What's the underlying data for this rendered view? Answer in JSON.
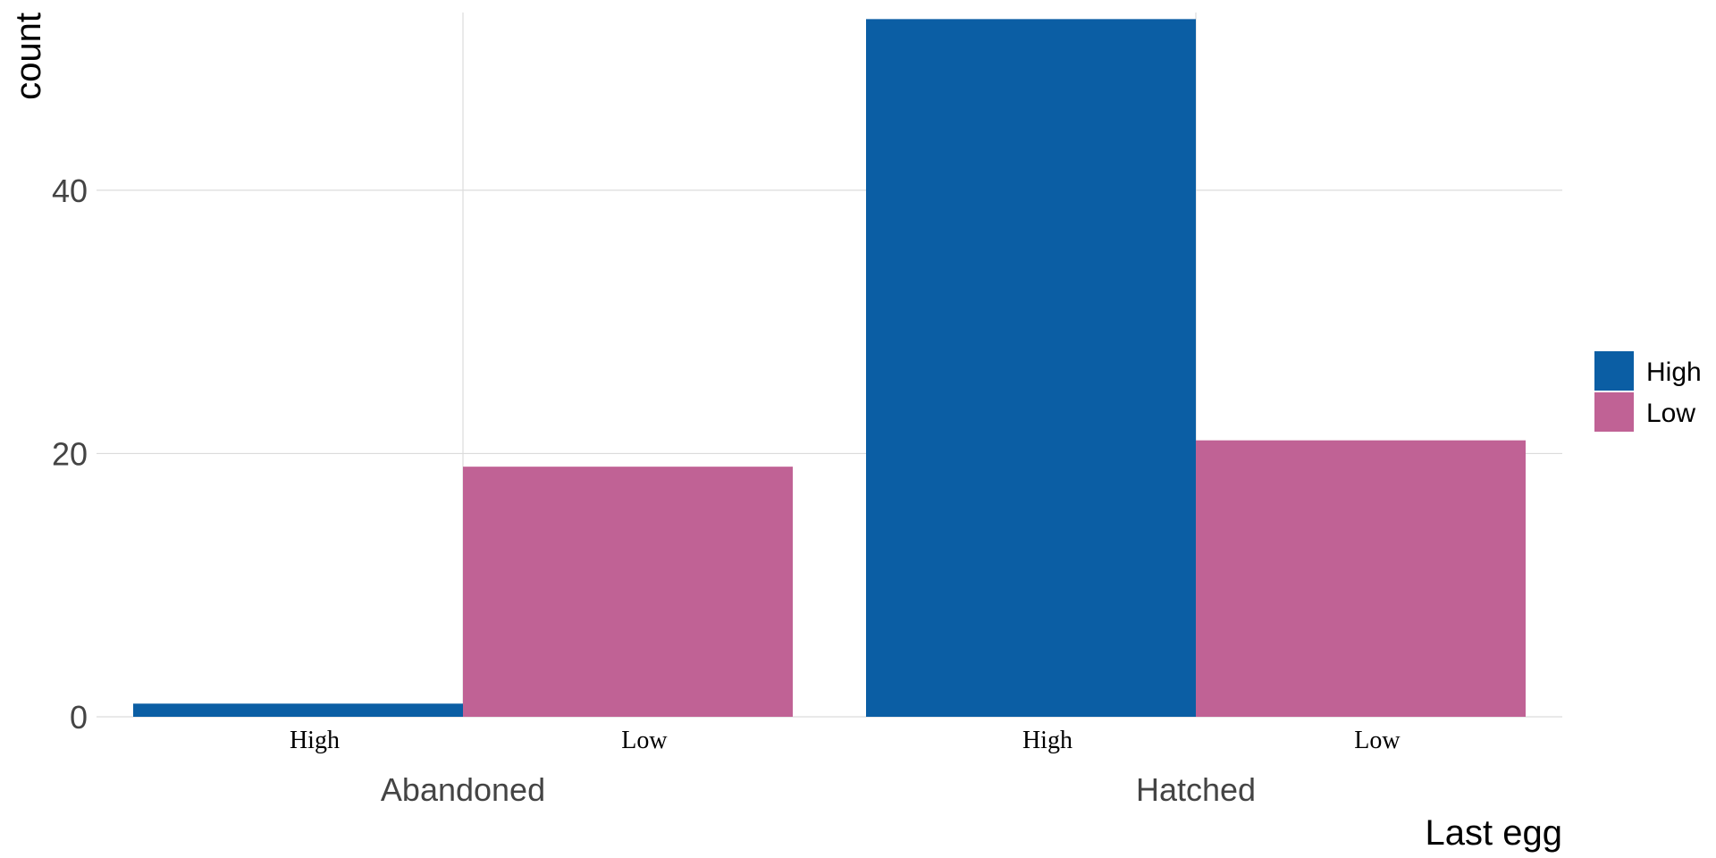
{
  "chart_data": {
    "type": "bar",
    "categories": [
      "Abandoned",
      "Hatched"
    ],
    "subcategories": [
      "High",
      "Low"
    ],
    "series": [
      {
        "name": "High",
        "color": "#0b5ea4",
        "values": [
          1,
          53
        ]
      },
      {
        "name": "Low",
        "color": "#c06295",
        "values": [
          19,
          21
        ]
      }
    ],
    "xlabel": "Last egg",
    "ylabel": "count",
    "ylim": [
      0,
      53.5
    ],
    "yticks": [
      0,
      20,
      40
    ],
    "grid": true,
    "legend": {
      "position": "right",
      "entries": [
        "High",
        "Low"
      ]
    }
  }
}
